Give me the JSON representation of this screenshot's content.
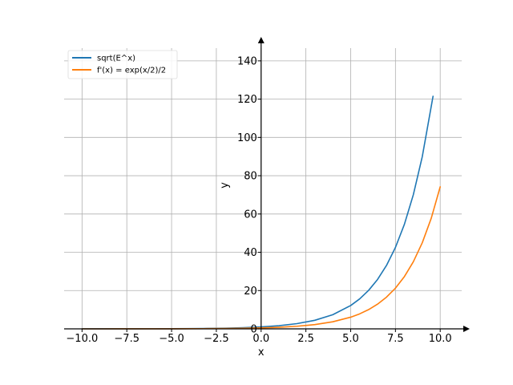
{
  "chart_data": {
    "type": "line",
    "title": "",
    "xlabel": "x",
    "ylabel": "y",
    "xlim": [
      -11,
      11.2
    ],
    "ylim": [
      0,
      150
    ],
    "xticks": [
      -10.0,
      -7.5,
      -5.0,
      -2.5,
      0.0,
      2.5,
      5.0,
      7.5,
      10.0
    ],
    "xtick_labels": [
      "−10.0",
      "−7.5",
      "−5.0",
      "−2.5",
      "0.0",
      "2.5",
      "5.0",
      "7.5",
      "10.0"
    ],
    "yticks": [
      0,
      20,
      40,
      60,
      80,
      100,
      120,
      140
    ],
    "ytick_labels": [
      "0",
      "20",
      "40",
      "60",
      "80",
      "100",
      "120",
      "140"
    ],
    "grid": true,
    "legend_position": "top-left",
    "series": [
      {
        "name": "sqrt(E^x)",
        "color": "#1f77b4",
        "x": [
          -10,
          -9,
          -8,
          -7,
          -6,
          -5,
          -4,
          -3,
          -2,
          -1,
          0,
          1,
          2,
          3,
          4,
          5,
          5.5,
          6,
          6.5,
          7,
          7.5,
          8,
          8.5,
          9,
          9.6
        ],
        "y": [
          0.0067,
          0.0111,
          0.0183,
          0.0302,
          0.0498,
          0.0821,
          0.1353,
          0.2231,
          0.3679,
          0.6065,
          1.0,
          1.6487,
          2.7183,
          4.4817,
          7.3891,
          12.1825,
          15.6426,
          20.0855,
          25.7903,
          33.1155,
          42.5211,
          54.5982,
          70.1054,
          90.0171,
          121.5104
        ]
      },
      {
        "name": "f'(x) = exp(x/2)/2",
        "color": "#ff7f0e",
        "x": [
          -10,
          -9,
          -8,
          -7,
          -6,
          -5,
          -4,
          -3,
          -2,
          -1,
          0,
          1,
          2,
          3,
          4,
          5,
          5.5,
          6,
          6.5,
          7,
          7.5,
          8,
          8.5,
          9,
          9.5,
          10
        ],
        "y": [
          0.0034,
          0.0056,
          0.0092,
          0.0151,
          0.0249,
          0.041,
          0.0677,
          0.1116,
          0.1839,
          0.3033,
          0.5,
          0.8244,
          1.3591,
          2.2408,
          3.6945,
          6.0912,
          7.8213,
          10.0428,
          12.8951,
          16.5577,
          21.2605,
          27.2991,
          35.0527,
          45.0086,
          57.7933,
          74.2066
        ]
      }
    ]
  }
}
